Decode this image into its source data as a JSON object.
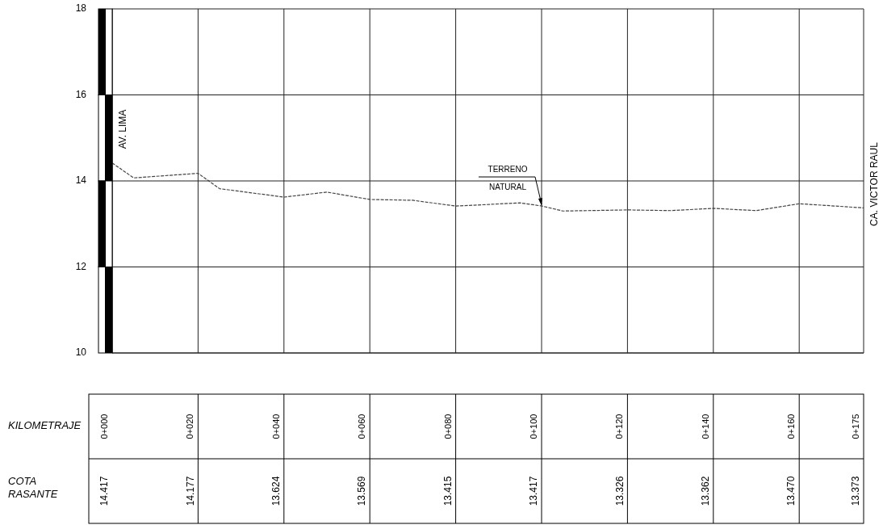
{
  "chart_data": {
    "type": "line",
    "xlabel": "KILOMETRAJE",
    "categories": [
      "0+000",
      null,
      null,
      null,
      "0+020",
      null,
      null,
      null,
      "0+040",
      null,
      null,
      null,
      "0+060",
      null,
      null,
      null,
      "0+080",
      null,
      null,
      null,
      "0+100",
      null,
      null,
      null,
      "0+120",
      null,
      null,
      null,
      "0+140",
      null,
      null,
      null,
      "0+160",
      null,
      null,
      "0+175"
    ],
    "series": [
      {
        "color": "#444444",
        "values": [
          14.417,
          14.07,
          null,
          null,
          14.177,
          13.82,
          null,
          null,
          13.624,
          null,
          13.74,
          null,
          13.569,
          null,
          13.55,
          null,
          13.415,
          null,
          null,
          13.49,
          13.417,
          13.3,
          null,
          null,
          13.326,
          null,
          13.31,
          null,
          13.362,
          null,
          13.31,
          null,
          13.47,
          null,
          null,
          13.373
        ],
        "value_labels": [
          "14.417",
          null,
          null,
          null,
          "14.177",
          null,
          null,
          null,
          "13.624",
          null,
          null,
          null,
          "13.569",
          null,
          null,
          null,
          "13.415",
          null,
          null,
          null,
          "13.417",
          null,
          null,
          null,
          "13.326",
          null,
          null,
          null,
          "13.362",
          null,
          null,
          null,
          "13.470",
          null,
          null,
          "13.373"
        ]
      }
    ],
    "ylim": [
      10,
      18
    ],
    "yticks": [
      10,
      12,
      14,
      16,
      18
    ],
    "grid": true,
    "marker": "none",
    "line_style": "dashed",
    "annotations": [
      "AV. LIMA",
      {
        "text": "TERRENO NATURAL",
        "x": "0+100",
        "y": 13.417
      },
      "CA. VICTOR RAUL",
      "COTA RASANTE"
    ]
  }
}
